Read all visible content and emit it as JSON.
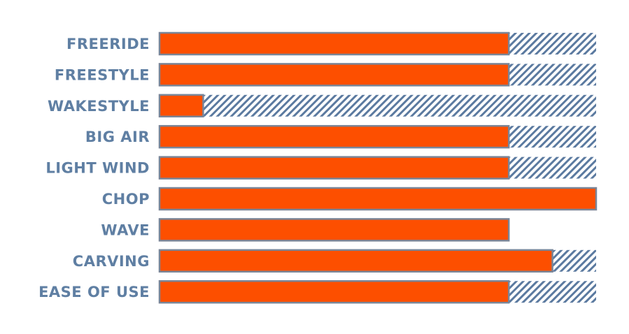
{
  "chart_data": {
    "type": "bar",
    "orientation": "horizontal",
    "categories": [
      "FREERIDE",
      "FREESTYLE",
      "WAKESTYLE",
      "BIG AIR",
      "LIGHT WIND",
      "CHOP",
      "WAVE",
      "CARVING",
      "EASE OF USE"
    ],
    "values": [
      4,
      4,
      0.5,
      4,
      4,
      5,
      4,
      4.5,
      4
    ],
    "max": [
      5,
      5,
      5,
      5,
      5,
      5,
      4,
      5,
      5
    ],
    "xlim": [
      0,
      5
    ],
    "grid": false,
    "colors": {
      "fill": "#fd4f00",
      "hatch": "#5b7aa0",
      "outline": "#7a8597",
      "label": "#5f7fa3"
    }
  }
}
